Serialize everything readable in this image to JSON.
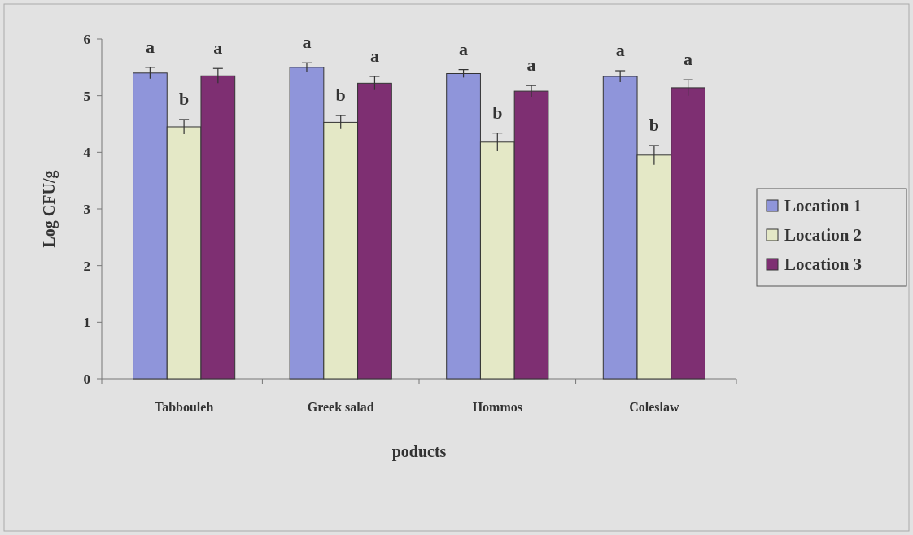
{
  "chart_data": {
    "type": "bar",
    "xlabel": "poducts",
    "ylabel": "Log CFU/g",
    "categories": [
      "Tabbouleh",
      "Greek salad",
      "Hommos",
      "Coleslaw"
    ],
    "series": [
      {
        "name": "Location 1",
        "color": "#8f95da",
        "values": [
          5.4,
          5.5,
          5.39,
          5.34
        ],
        "errors": [
          0.1,
          0.08,
          0.07,
          0.1
        ],
        "value_labels": [
          "a",
          "a",
          "a",
          "a"
        ]
      },
      {
        "name": "Location 2",
        "color": "#e4e8c6",
        "values": [
          4.45,
          4.53,
          4.18,
          3.95
        ],
        "errors": [
          0.13,
          0.12,
          0.16,
          0.17
        ],
        "value_labels": [
          "b",
          "b",
          "b",
          "b"
        ]
      },
      {
        "name": "Location 3",
        "color": "#7e2f72",
        "values": [
          5.35,
          5.22,
          5.08,
          5.14
        ],
        "errors": [
          0.13,
          0.12,
          0.1,
          0.14
        ],
        "value_labels": [
          "a",
          "a",
          "a",
          "a"
        ]
      }
    ],
    "ylim": [
      0,
      6
    ],
    "yticks": [
      0,
      1,
      2,
      3,
      4,
      5,
      6
    ],
    "legend": "right",
    "grid": false
  }
}
